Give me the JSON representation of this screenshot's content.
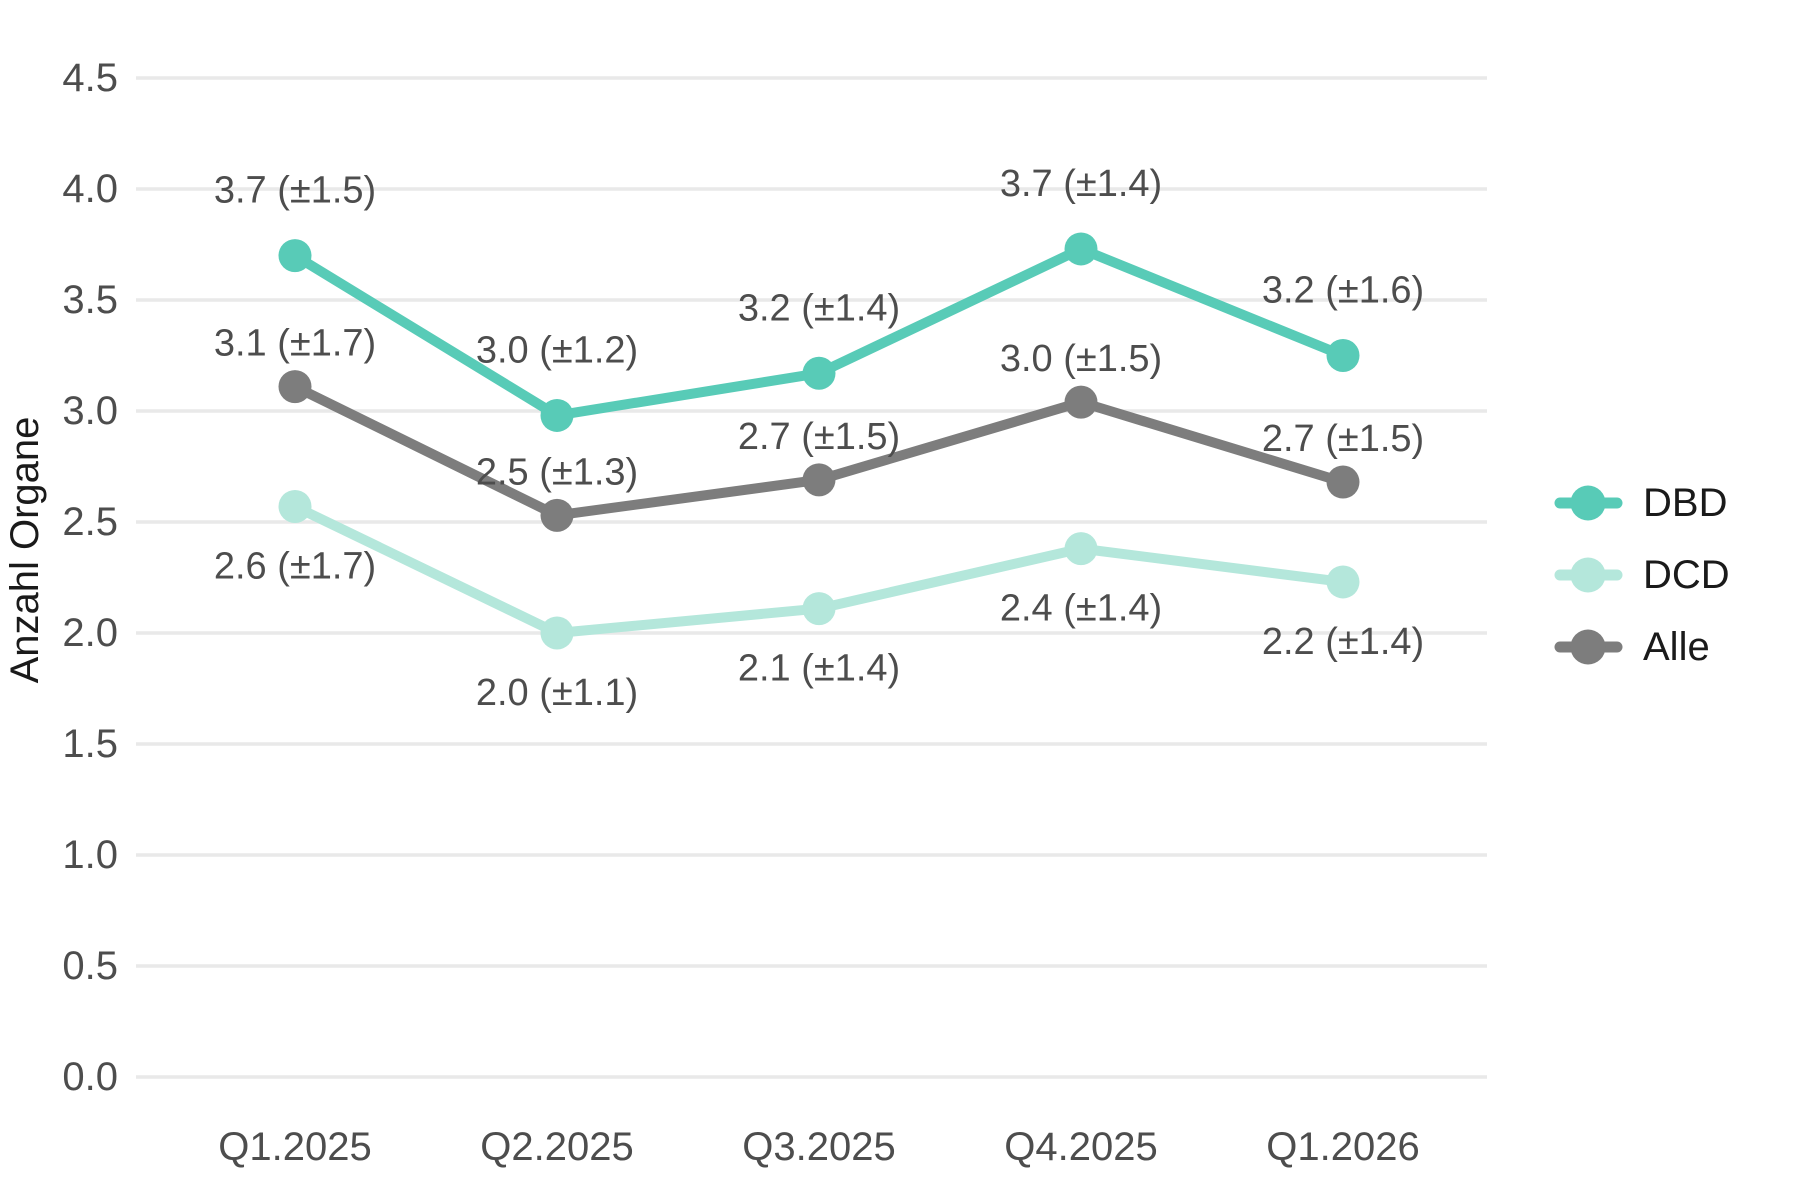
{
  "chart_data": {
    "type": "line",
    "title": "",
    "xlabel": "",
    "ylabel": "Anzahl Organe",
    "categories": [
      "Q1.2025",
      "Q2.2025",
      "Q3.2025",
      "Q4.2025",
      "Q1.2026"
    ],
    "y_tick_labels": [
      "0.0",
      "0.5",
      "1.0",
      "1.5",
      "2.0",
      "2.5",
      "3.0",
      "3.5",
      "4.0",
      "4.5"
    ],
    "ylim": [
      0,
      4.5
    ],
    "grid": "horizontal-only",
    "legend_position": "right",
    "series": [
      {
        "name": "DBD",
        "color": "#58CBB7",
        "values": [
          3.7,
          3.0,
          3.2,
          3.7,
          3.2
        ],
        "errors": [
          1.5,
          1.2,
          1.4,
          1.4,
          1.6
        ],
        "point_labels": [
          "3.7 (±1.5)",
          "3.0 (±1.2)",
          "3.2 (±1.4)",
          "3.7 (±1.4)",
          "3.2 (±1.6)"
        ],
        "plotted_values": [
          3.7,
          2.98,
          3.17,
          3.73,
          3.25
        ],
        "label_placement": "above"
      },
      {
        "name": "DCD",
        "color": "#B4E7DB",
        "values": [
          2.6,
          2.0,
          2.1,
          2.4,
          2.2
        ],
        "errors": [
          1.7,
          1.1,
          1.4,
          1.4,
          1.4
        ],
        "point_labels": [
          "2.6 (±1.7)",
          "2.0 (±1.1)",
          "2.1 (±1.4)",
          "2.4 (±1.4)",
          "2.2 (±1.4)"
        ],
        "plotted_values": [
          2.57,
          2.0,
          2.11,
          2.38,
          2.23
        ],
        "label_placement": "below"
      },
      {
        "name": "Alle",
        "color": "#7D7D7D",
        "values": [
          3.1,
          2.5,
          2.7,
          3.0,
          2.7
        ],
        "errors": [
          1.7,
          1.3,
          1.5,
          1.5,
          1.5
        ],
        "point_labels": [
          "3.1 (±1.7)",
          "2.5 (±1.3)",
          "2.7 (±1.5)",
          "3.0 (±1.5)",
          "2.7 (±1.5)"
        ],
        "plotted_values": [
          3.11,
          2.53,
          2.69,
          3.04,
          2.68
        ],
        "label_placement": "above"
      }
    ],
    "colors": {
      "grid_line": "#E9E9E9",
      "tick_text": "#4D4D4D",
      "data_label_text": "#4D4D4D",
      "axis_title_text": "#1A1A1A",
      "legend_text": "#1A1A1A",
      "background": "#FFFFFF"
    }
  }
}
